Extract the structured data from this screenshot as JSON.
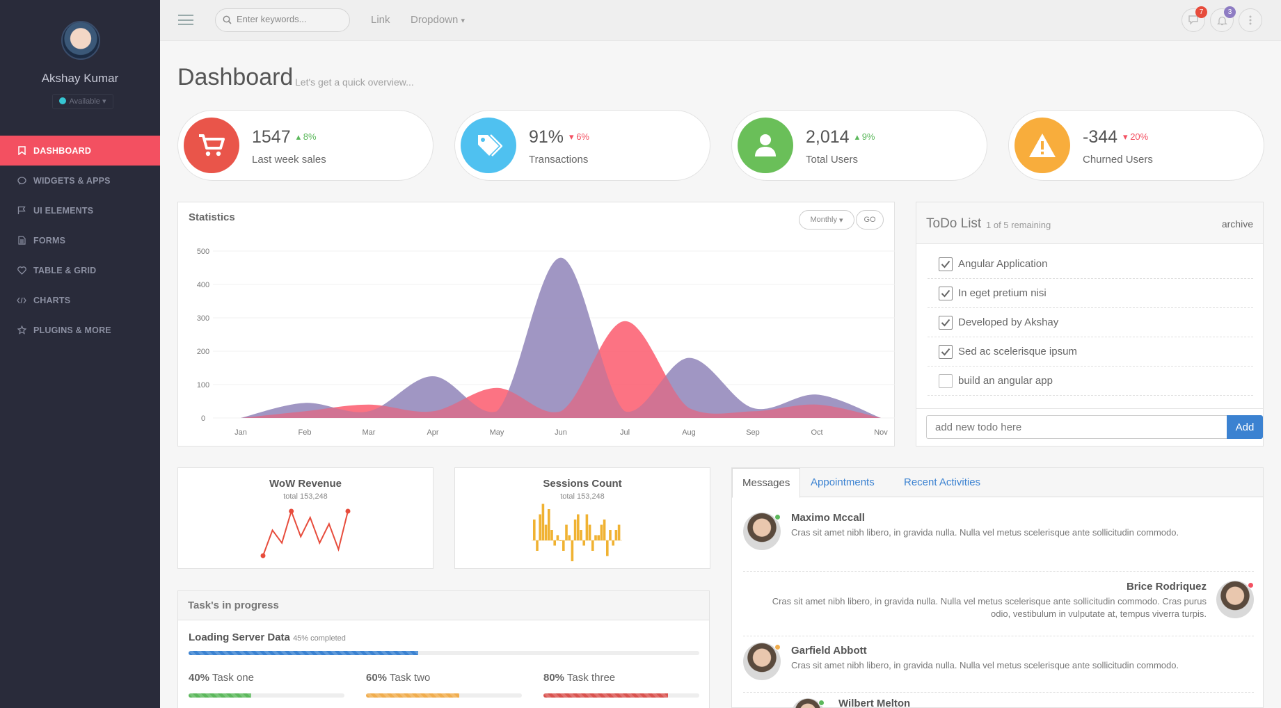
{
  "sidebar": {
    "user_name": "Akshay Kumar",
    "status": "Available",
    "items": [
      {
        "label": "DASHBOARD",
        "icon": "bookmark-icon"
      },
      {
        "label": "WIDGETS & APPS",
        "icon": "chat-icon"
      },
      {
        "label": "UI ELEMENTS",
        "icon": "flag-icon"
      },
      {
        "label": "FORMS",
        "icon": "document-icon"
      },
      {
        "label": "TABLE & GRID",
        "icon": "heart-icon"
      },
      {
        "label": "CHARTS",
        "icon": "code-icon"
      },
      {
        "label": "PLUGINS & MORE",
        "icon": "star-icon"
      }
    ]
  },
  "topbar": {
    "search_placeholder": "Enter keywords...",
    "link": "Link",
    "dropdown": "Dropdown",
    "messages_badge": "7",
    "notifications_badge": "3",
    "colors": {
      "messages_badge": "#e74c3c",
      "notifications_badge": "#8e7cc3"
    }
  },
  "page": {
    "title": "Dashboard",
    "subtitle": "Let's get a quick overview..."
  },
  "stats": [
    {
      "value": "1547",
      "change": "8%",
      "direction": "up",
      "label": "Last week sales",
      "color": "#e9554a",
      "icon": "cart-icon"
    },
    {
      "value": "91%",
      "change": "6%",
      "direction": "down",
      "label": "Transactions",
      "color": "#4fc1f0",
      "icon": "tag-icon"
    },
    {
      "value": "2,014",
      "change": "9%",
      "direction": "up",
      "label": "Total Users",
      "color": "#6abf59",
      "icon": "user-icon"
    },
    {
      "value": "-344",
      "change": "20%",
      "direction": "down",
      "label": "Churned Users",
      "color": "#f8ad3c",
      "icon": "warning-icon"
    }
  ],
  "statistics": {
    "title": "Statistics",
    "period": "Monthly",
    "go": "GO"
  },
  "chart_data": {
    "type": "area",
    "x": [
      "Jan",
      "Feb",
      "Mar",
      "Apr",
      "May",
      "Jun",
      "Jul",
      "Aug",
      "Sep",
      "Oct",
      "Nov"
    ],
    "ylim": [
      0,
      500
    ],
    "yticks": [
      0,
      100,
      200,
      300,
      400,
      500
    ],
    "series": [
      {
        "color": "#9a8fbf",
        "values": [
          0,
          45,
          20,
          125,
          20,
          480,
          20,
          180,
          30,
          70,
          0
        ]
      },
      {
        "color": "#fb5b6d",
        "values": [
          0,
          20,
          40,
          20,
          90,
          20,
          290,
          30,
          20,
          40,
          0
        ]
      }
    ]
  },
  "todo": {
    "title": "ToDo List",
    "remaining": "1 of 5 remaining",
    "archive": "archive",
    "items": [
      {
        "text": "Angular Application",
        "done": true
      },
      {
        "text": "In eget pretium nisi",
        "done": true
      },
      {
        "text": "Developed by Akshay",
        "done": true
      },
      {
        "text": "Sed ac scelerisque ipsum",
        "done": true
      },
      {
        "text": "build an angular app",
        "done": false
      }
    ],
    "input_placeholder": "add new todo here",
    "add": "Add"
  },
  "revenue": {
    "title": "WoW Revenue",
    "subtitle": "total 153,248",
    "values": [
      2,
      6,
      4,
      9,
      5,
      8,
      4,
      7,
      3,
      9
    ]
  },
  "sessions": {
    "title": "Sessions Count",
    "subtitle": "total 153,248",
    "values": [
      4,
      -2,
      5,
      7,
      3,
      6,
      2,
      -1,
      1,
      0,
      -2,
      3,
      1,
      -4,
      4,
      5,
      2,
      -1,
      5,
      3,
      -2,
      1,
      1,
      3,
      4,
      -3,
      2,
      -1,
      2,
      3
    ]
  },
  "tasks": {
    "title": "Task's in progress",
    "main": {
      "name": "Loading Server Data",
      "percent_label": "45%",
      "suffix": "completed",
      "progress": 45
    },
    "items": [
      {
        "percent_label": "40%",
        "name": "Task one",
        "progress": 40,
        "color": "#5cb85c"
      },
      {
        "percent_label": "60%",
        "name": "Task two",
        "progress": 60,
        "color": "#f0ad4e"
      },
      {
        "percent_label": "80%",
        "name": "Task three",
        "progress": 80,
        "color": "#d9534f"
      }
    ]
  },
  "messages": {
    "tabs": [
      "Messages",
      "Appointments",
      "Recent Activities"
    ],
    "items": [
      {
        "name": "Maximo Mccall",
        "text": "Cras sit amet nibh libero, in gravida nulla. Nulla vel metus scelerisque ante sollicitudin commodo.",
        "status": "#5cb85c"
      },
      {
        "name": "Brice Rodriquez",
        "text1": "Cras sit amet nibh libero, in gravida nulla. Nulla vel metus scelerisque ante sollicitudin commodo. Cras purus",
        "text2": "odio, vestibulum in vulputate at, tempus viverra turpis.",
        "status": "#f35061"
      },
      {
        "name": "Garfield Abbott",
        "text": "Cras sit amet nibh libero, in gravida nulla. Nulla vel metus scelerisque ante sollicitudin commodo.",
        "status": "#f0ad4e"
      },
      {
        "name": "Wilbert Melton",
        "status": "#5cb85c"
      }
    ]
  }
}
